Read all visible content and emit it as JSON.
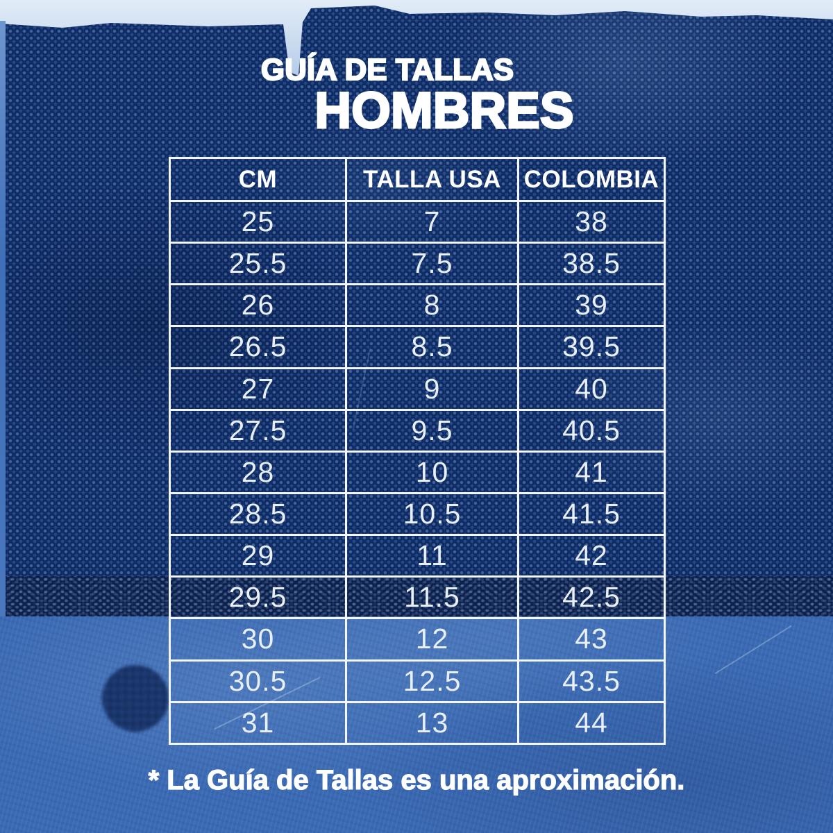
{
  "page": {
    "title_line1": "GUÍA DE TALLAS",
    "title_line2": "HOMBRES",
    "footnote": "* La Guía de Tallas es una aproximación."
  },
  "table": {
    "headers": [
      "CM",
      "TALLA USA",
      "COLOMBIA"
    ],
    "rows": [
      [
        "25",
        "7",
        "38"
      ],
      [
        "25.5",
        "7.5",
        "38.5"
      ],
      [
        "26",
        "8",
        "39"
      ],
      [
        "26.5",
        "8.5",
        "39.5"
      ],
      [
        "27",
        "9",
        "40"
      ],
      [
        "27.5",
        "9.5",
        "40.5"
      ],
      [
        "28",
        "10",
        "41"
      ],
      [
        "28.5",
        "10.5",
        "41.5"
      ],
      [
        "29",
        "11",
        "42"
      ],
      [
        "29.5",
        "11.5",
        "42.5"
      ],
      [
        "30",
        "12",
        "43"
      ],
      [
        "30.5",
        "12.5",
        "43.5"
      ],
      [
        "31",
        "13",
        "44"
      ]
    ]
  },
  "colors": {
    "fabric_navy": "#0e2a62",
    "fabric_dot": "#3b66ad",
    "bottom_blue": "#3a6ab4",
    "pale_top": "#c6d8ee",
    "border_white": "#f3f6fa",
    "text_white": "#ffffff",
    "text_data": "#e9eff7"
  }
}
